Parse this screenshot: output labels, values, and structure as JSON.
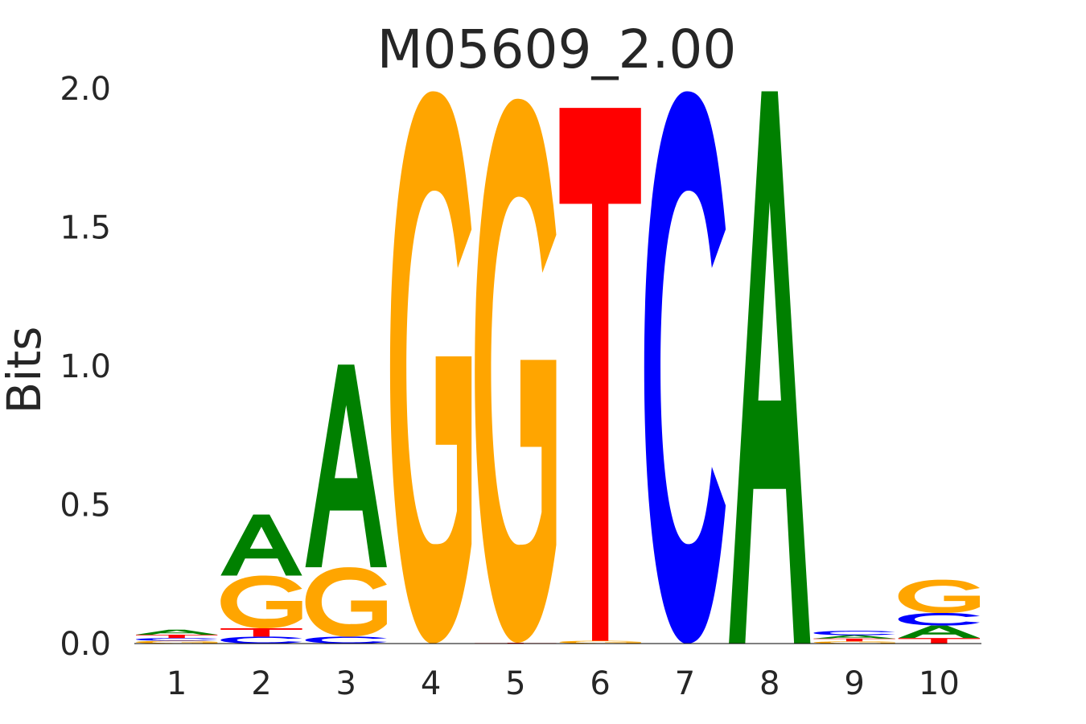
{
  "chart_data": {
    "type": "sequence-logo",
    "title": "M05609_2.00",
    "xlabel": "",
    "ylabel": "Bits",
    "ylim": [
      0,
      2
    ],
    "yticks": [
      "0.0",
      "0.5",
      "1.0",
      "1.5",
      "2.0"
    ],
    "grid": false,
    "legend": "none",
    "colors": {
      "A": "#008000",
      "C": "#0000ff",
      "G": "#ffa500",
      "T": "#ff0000"
    },
    "categories": [
      "1",
      "2",
      "3",
      "4",
      "5",
      "6",
      "7",
      "8",
      "9",
      "10"
    ],
    "positions": [
      {
        "position": "1",
        "stack": [
          {
            "base": "G",
            "bits": 0.01
          },
          {
            "base": "C",
            "bits": 0.01
          },
          {
            "base": "T",
            "bits": 0.012
          },
          {
            "base": "A",
            "bits": 0.018
          }
        ]
      },
      {
        "position": "2",
        "stack": [
          {
            "base": "C",
            "bits": 0.025
          },
          {
            "base": "T",
            "bits": 0.03
          },
          {
            "base": "G",
            "bits": 0.19
          },
          {
            "base": "A",
            "bits": 0.22
          }
        ]
      },
      {
        "position": "3",
        "stack": [
          {
            "base": "C",
            "bits": 0.025
          },
          {
            "base": "G",
            "bits": 0.25
          },
          {
            "base": "A",
            "bits": 0.73
          }
        ]
      },
      {
        "position": "4",
        "stack": [
          {
            "base": "G",
            "bits": 1.99
          }
        ]
      },
      {
        "position": "5",
        "stack": [
          {
            "base": "T",
            "bits": 0.003
          },
          {
            "base": "G",
            "bits": 1.96
          }
        ]
      },
      {
        "position": "6",
        "stack": [
          {
            "base": "G",
            "bits": 0.01
          },
          {
            "base": "T",
            "bits": 1.92
          }
        ]
      },
      {
        "position": "7",
        "stack": [
          {
            "base": "C",
            "bits": 1.99
          }
        ]
      },
      {
        "position": "8",
        "stack": [
          {
            "base": "A",
            "bits": 1.99
          }
        ]
      },
      {
        "position": "9",
        "stack": [
          {
            "base": "G",
            "bits": 0.008
          },
          {
            "base": "T",
            "bits": 0.01
          },
          {
            "base": "A",
            "bits": 0.012
          },
          {
            "base": "C",
            "bits": 0.016
          }
        ]
      },
      {
        "position": "10",
        "stack": [
          {
            "base": "T",
            "bits": 0.02
          },
          {
            "base": "A",
            "bits": 0.045
          },
          {
            "base": "C",
            "bits": 0.045
          },
          {
            "base": "G",
            "bits": 0.12
          }
        ]
      }
    ]
  }
}
